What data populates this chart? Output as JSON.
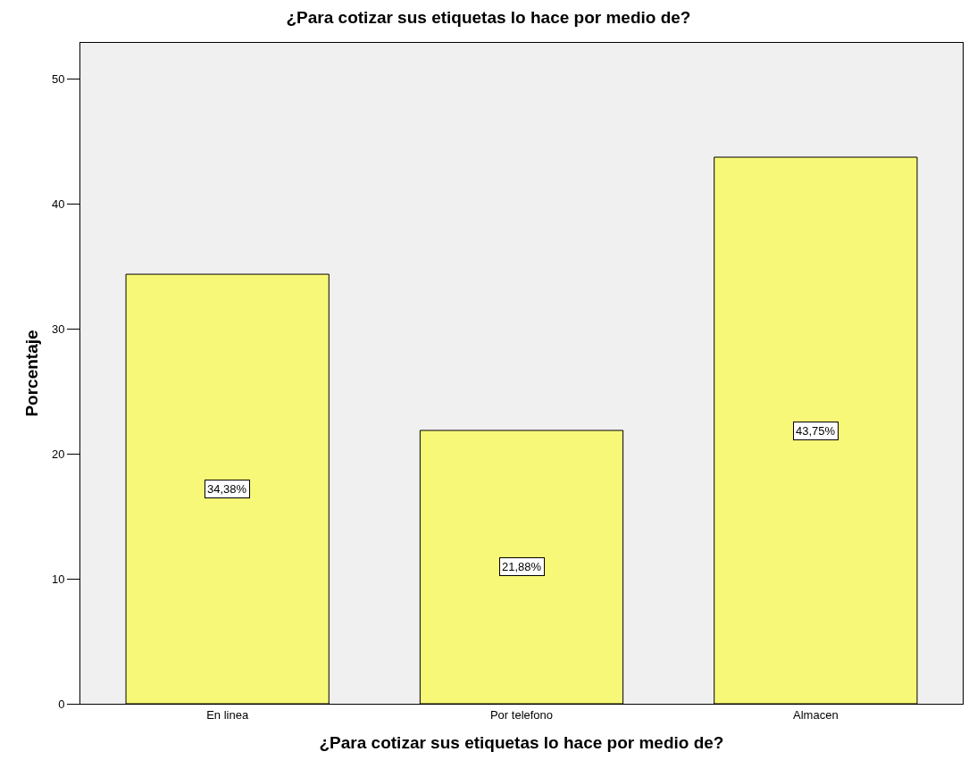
{
  "chart_data": {
    "type": "bar",
    "title": "¿Para cotizar sus etiquetas lo hace por medio de?",
    "xlabel": "¿Para cotizar sus etiquetas lo hace por medio de?",
    "ylabel": "Porcentaje",
    "categories": [
      "En linea",
      "Por telefono",
      "Almacen"
    ],
    "values": [
      34.38,
      21.88,
      43.75
    ],
    "value_labels": [
      "34,38%",
      "21,88%",
      "43,75%"
    ],
    "color": "#f8f878",
    "ylim": [
      0,
      52.9
    ],
    "yticks": [
      0,
      10,
      20,
      30,
      40,
      50
    ],
    "grid": false,
    "legend": false
  }
}
